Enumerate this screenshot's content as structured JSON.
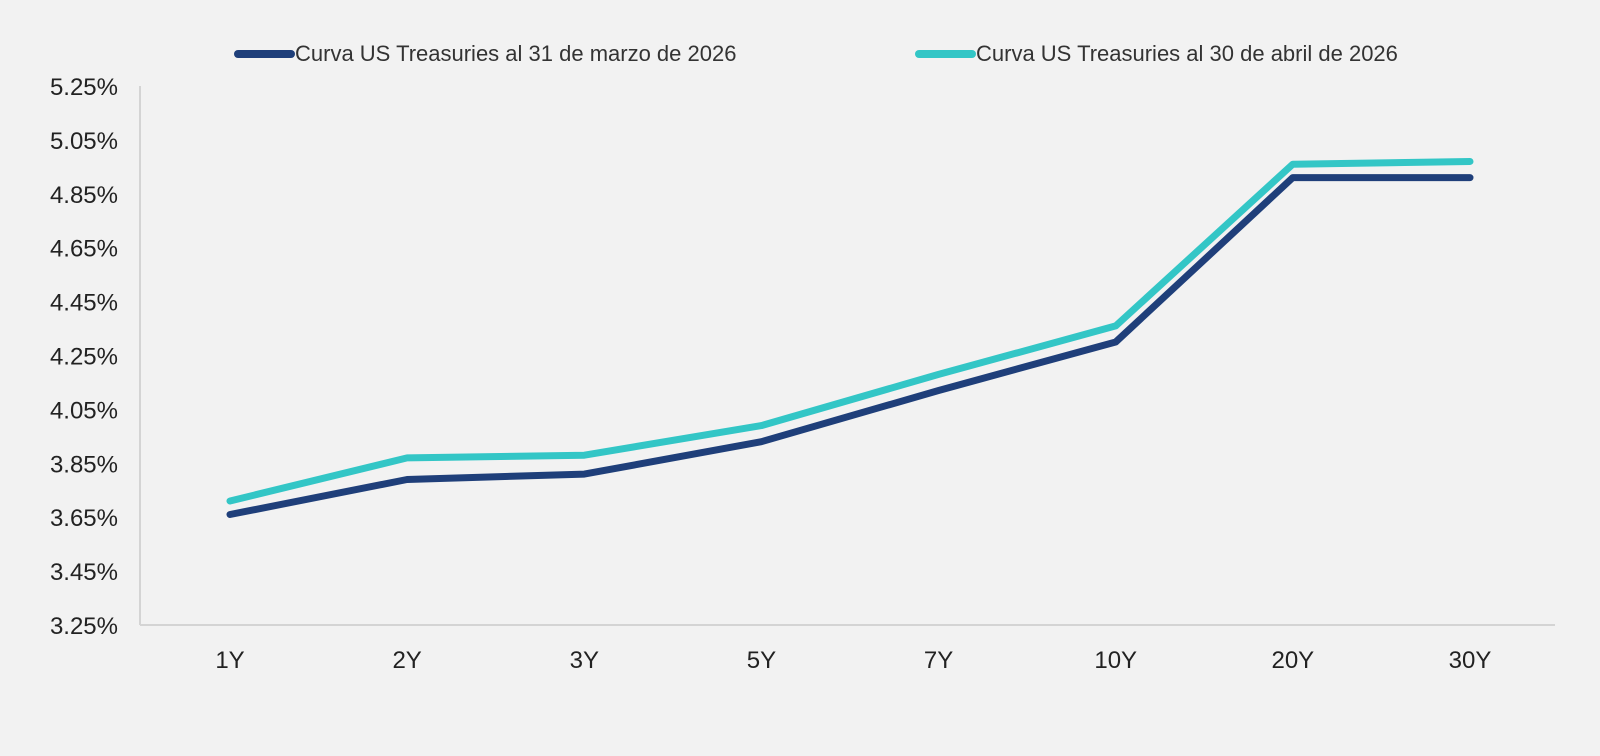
{
  "chart_data": {
    "type": "line",
    "title": "",
    "xlabel": "",
    "ylabel": "",
    "categories": [
      "1Y",
      "2Y",
      "3Y",
      "5Y",
      "7Y",
      "10Y",
      "20Y",
      "30Y"
    ],
    "ylim": [
      3.25,
      5.25
    ],
    "y_ticks": [
      3.25,
      3.45,
      3.65,
      3.85,
      4.05,
      4.25,
      4.45,
      4.65,
      4.85,
      5.05,
      5.25
    ],
    "y_tick_labels": [
      "3.25%",
      "3.45%",
      "3.65%",
      "3.85%",
      "4.05%",
      "4.25%",
      "4.45%",
      "4.65%",
      "4.85%",
      "5.05%",
      "5.25%"
    ],
    "grid": false,
    "legend_position": "top",
    "series": [
      {
        "name": "Curva US Treasuries al 31 de marzo de 2026",
        "color": "#1f3f7a",
        "values": [
          3.66,
          3.79,
          3.81,
          3.93,
          4.12,
          4.3,
          4.91,
          4.91
        ]
      },
      {
        "name": "Curva US Treasuries al 30 de abril de 2026",
        "color": "#33c6c6",
        "values": [
          3.71,
          3.87,
          3.88,
          3.99,
          4.18,
          4.36,
          4.96,
          4.97
        ]
      }
    ]
  }
}
